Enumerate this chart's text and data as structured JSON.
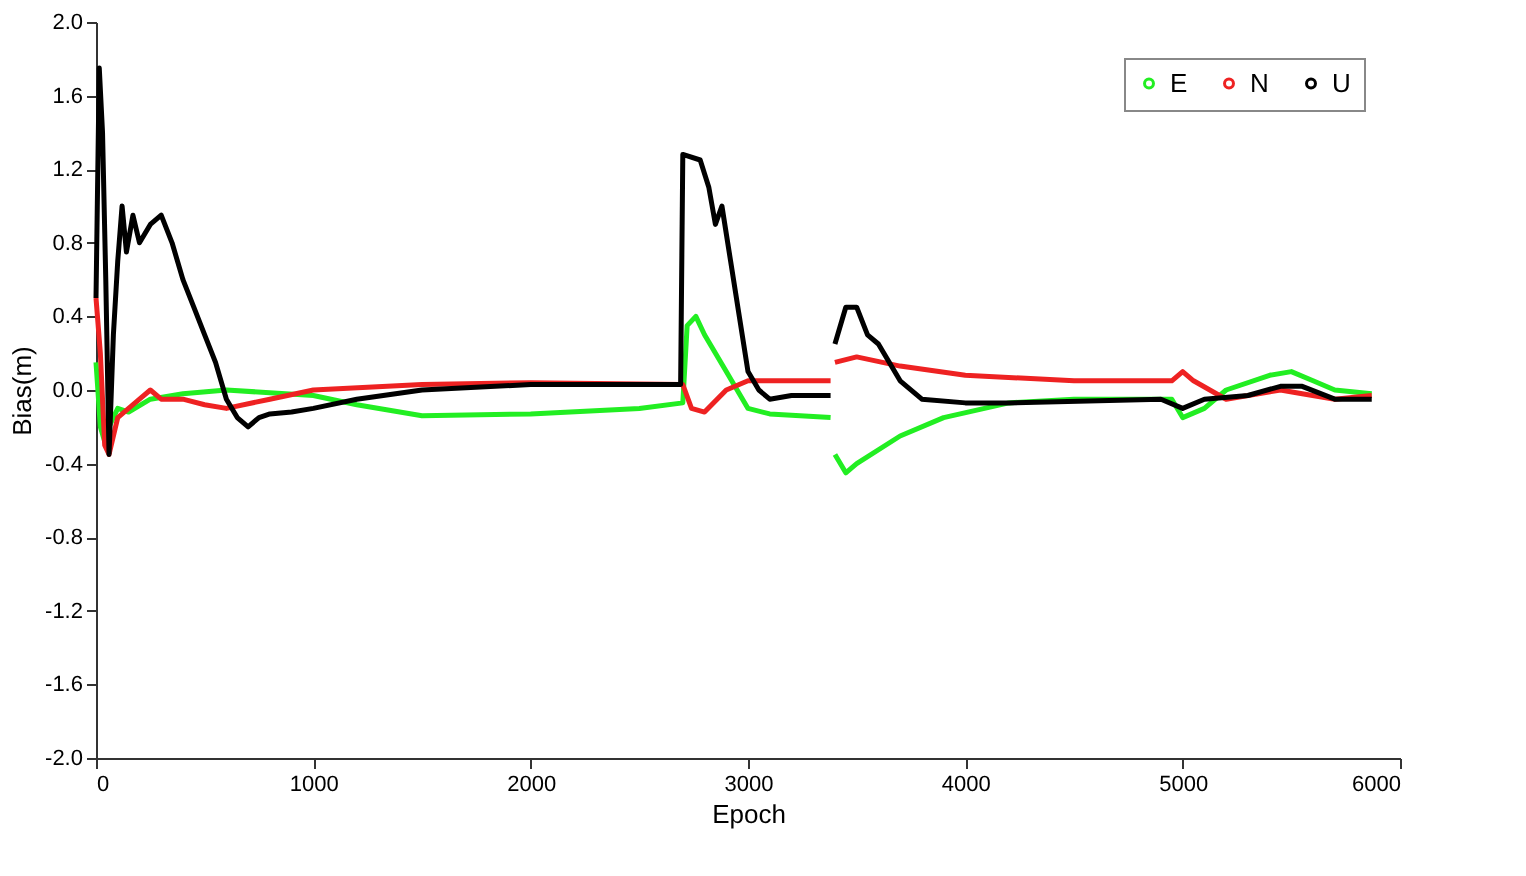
{
  "chart_data": {
    "type": "line",
    "xlabel": "Epoch",
    "ylabel": "Bias(m)",
    "xlim": [
      0,
      6000
    ],
    "ylim": [
      -2,
      2
    ],
    "xticks": [
      0,
      1000,
      2000,
      3000,
      4000,
      5000,
      6000
    ],
    "yticks": [
      {
        "value": -2,
        "label": "-2.0"
      },
      {
        "value": -1.6,
        "label": "-1.6"
      },
      {
        "value": -1.2,
        "label": "-1.2"
      },
      {
        "value": -0.8,
        "label": "-0.8"
      },
      {
        "value": -0.4,
        "label": "-0.4"
      },
      {
        "value": 0,
        "label": "0.0"
      },
      {
        "value": 0.4,
        "label": "0.4"
      },
      {
        "value": 0.8,
        "label": "0.8"
      },
      {
        "value": 1.2,
        "label": "1.2"
      },
      {
        "value": 1.6,
        "label": "1.6"
      },
      {
        "value": 2,
        "label": "2.0"
      }
    ],
    "legend": "top right",
    "grid": false,
    "line_style": "solid",
    "series": [
      {
        "name": "E",
        "color": "#22ee22",
        "x": [
          0,
          20,
          40,
          60,
          100,
          150,
          250,
          400,
          600,
          1000,
          1200,
          1500,
          2000,
          2500,
          2700,
          2720,
          2760,
          2800,
          2900,
          3000,
          3100,
          3380,
          3390,
          3400,
          3450,
          3500,
          3700,
          3900,
          4200,
          4500,
          4950,
          5000,
          5100,
          5200,
          5400,
          5500,
          5600,
          5700,
          5870
        ],
        "values": [
          0.15,
          -0.2,
          -0.28,
          -0.2,
          -0.1,
          -0.12,
          -0.05,
          -0.02,
          0.0,
          -0.03,
          -0.08,
          -0.14,
          -0.13,
          -0.1,
          -0.07,
          0.35,
          0.4,
          0.3,
          0.1,
          -0.1,
          -0.13,
          -0.15,
          null,
          -0.35,
          -0.45,
          -0.4,
          -0.25,
          -0.15,
          -0.07,
          -0.05,
          -0.05,
          -0.15,
          -0.1,
          0.0,
          0.08,
          0.1,
          0.05,
          0.0,
          -0.02
        ]
      },
      {
        "name": "N",
        "color": "#ee2222",
        "x": [
          0,
          20,
          40,
          60,
          100,
          150,
          200,
          250,
          300,
          400,
          500,
          600,
          800,
          1000,
          1500,
          2000,
          2700,
          2740,
          2800,
          2900,
          3000,
          3100,
          3380,
          3390,
          3400,
          3500,
          3700,
          4000,
          4500,
          4950,
          5000,
          5050,
          5200,
          5450,
          5550,
          5700,
          5870
        ],
        "values": [
          0.5,
          0.2,
          -0.3,
          -0.35,
          -0.15,
          -0.1,
          -0.05,
          0.0,
          -0.05,
          -0.05,
          -0.08,
          -0.1,
          -0.05,
          0.0,
          0.03,
          0.04,
          0.03,
          -0.1,
          -0.12,
          0.0,
          0.05,
          0.05,
          0.05,
          null,
          0.15,
          0.18,
          0.13,
          0.08,
          0.05,
          0.05,
          0.1,
          0.05,
          -0.05,
          0.0,
          -0.02,
          -0.05,
          -0.03
        ]
      },
      {
        "name": "U",
        "color": "#000000",
        "x": [
          0,
          15,
          30,
          45,
          60,
          80,
          100,
          120,
          140,
          170,
          200,
          250,
          300,
          350,
          400,
          450,
          500,
          550,
          600,
          650,
          700,
          750,
          800,
          900,
          1000,
          1200,
          1500,
          2000,
          2690,
          2700,
          2780,
          2820,
          2850,
          2880,
          2920,
          2960,
          3000,
          3050,
          3100,
          3200,
          3380,
          3390,
          3400,
          3450,
          3500,
          3550,
          3600,
          3700,
          3800,
          4000,
          4200,
          4900,
          5000,
          5100,
          5300,
          5450,
          5550,
          5700,
          5870
        ],
        "values": [
          0.5,
          1.75,
          1.4,
          0.6,
          -0.35,
          0.3,
          0.7,
          1.0,
          0.75,
          0.95,
          0.8,
          0.9,
          0.95,
          0.8,
          0.6,
          0.45,
          0.3,
          0.15,
          -0.05,
          -0.15,
          -0.2,
          -0.15,
          -0.13,
          -0.12,
          -0.1,
          -0.05,
          0.0,
          0.03,
          0.03,
          1.28,
          1.25,
          1.1,
          0.9,
          1.0,
          0.7,
          0.4,
          0.1,
          0.0,
          -0.05,
          -0.03,
          -0.03,
          null,
          0.25,
          0.45,
          0.45,
          0.3,
          0.25,
          0.05,
          -0.05,
          -0.07,
          -0.07,
          -0.05,
          -0.1,
          -0.05,
          -0.03,
          0.02,
          0.02,
          -0.05,
          -0.05
        ]
      }
    ]
  }
}
